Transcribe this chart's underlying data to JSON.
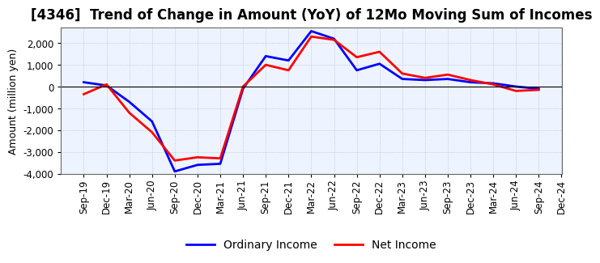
{
  "title": "[4346]  Trend of Change in Amount (YoY) of 12Mo Moving Sum of Incomes",
  "ylabel": "Amount (million yen)",
  "x_labels": [
    "Sep-19",
    "Dec-19",
    "Mar-20",
    "Jun-20",
    "Sep-20",
    "Dec-20",
    "Mar-21",
    "Jun-21",
    "Sep-21",
    "Dec-21",
    "Mar-22",
    "Jun-22",
    "Sep-22",
    "Dec-22",
    "Mar-23",
    "Jun-23",
    "Sep-23",
    "Dec-23",
    "Mar-24",
    "Jun-24",
    "Sep-24",
    "Dec-24"
  ],
  "ordinary_income": [
    200,
    50,
    -700,
    -1600,
    -3900,
    -3600,
    -3550,
    -100,
    1400,
    1200,
    2550,
    2200,
    750,
    1050,
    350,
    300,
    350,
    200,
    150,
    0,
    -100,
    null
  ],
  "net_income": [
    -350,
    100,
    -1200,
    -2100,
    -3400,
    -3250,
    -3300,
    0,
    1000,
    750,
    2300,
    2150,
    1350,
    1600,
    600,
    400,
    550,
    300,
    100,
    -200,
    -150,
    null
  ],
  "ordinary_color": "#0000FF",
  "net_color": "#FF0000",
  "ylim": [
    -4000,
    2700
  ],
  "yticks": [
    -4000,
    -3000,
    -2000,
    -1000,
    0,
    1000,
    2000
  ],
  "plot_bg_color": "#EEF4FF",
  "background_color": "#FFFFFF",
  "grid_color": "#AAAACC",
  "legend_ordinary": "Ordinary Income",
  "legend_net": "Net Income",
  "linewidth": 2.0,
  "title_fontsize": 12,
  "axis_label_fontsize": 9,
  "tick_fontsize": 8.5,
  "legend_fontsize": 10
}
